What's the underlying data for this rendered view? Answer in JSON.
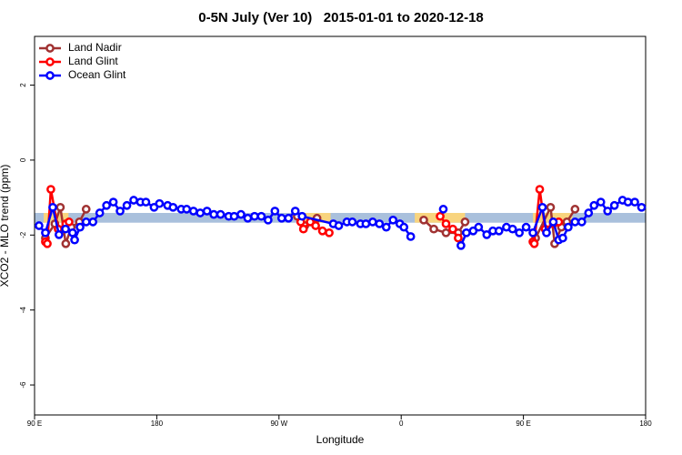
{
  "chart_data": {
    "type": "line",
    "title": "0-5N July (Ver 10)   2015-01-01 to 2020-12-18",
    "xlabel": "Longitude",
    "ylabel": "XCO2 - MLO trend (ppm)",
    "xlim": [
      90,
      540
    ],
    "ylim": [
      -6.8,
      3.3
    ],
    "xticks": [
      {
        "value": 90,
        "label": "90 E"
      },
      180,
      {
        "value": 270,
        "label": "90 W"
      },
      {
        "value": 360,
        "label": "0"
      },
      {
        "value": 450,
        "label": "90 E"
      },
      {
        "value": 540,
        "label": "180"
      }
    ],
    "yticks": [
      -6,
      -4,
      -2,
      0,
      2
    ],
    "legend": "top-left",
    "bands": [
      {
        "xlim": [
          90,
          540
        ],
        "ylim": [
          -1.67,
          -1.41
        ],
        "color": "#a9c0dc"
      },
      {
        "xlim": [
          96.7,
          115
        ],
        "ylim": [
          -1.67,
          -1.41
        ],
        "color": "#f8d47e"
      },
      {
        "xlim": [
          283.5,
          308
        ],
        "ylim": [
          -1.67,
          -1.41
        ],
        "color": "#f8d47e"
      },
      {
        "xlim": [
          370,
          407
        ],
        "ylim": [
          -1.67,
          -1.41
        ],
        "color": "#f8d47e"
      },
      {
        "xlim": [
          457,
          486
        ],
        "ylim": [
          -1.67,
          -1.41
        ],
        "color": "#f8d47e"
      }
    ],
    "series": [
      {
        "name": "Land Nadir",
        "color": "#a03232",
        "x": [
          98,
          105,
          109,
          113,
          117,
          123,
          128,
          null,
          283.5,
          289,
          298,
          null,
          376.6,
          384,
          393,
          402,
          407,
          null,
          459,
          470,
          473,
          478,
          482,
          488
        ],
        "values": [
          -2.08,
          -1.7,
          -1.26,
          -2.23,
          -1.79,
          -1.65,
          -1.31,
          null,
          -1.5,
          -1.75,
          -1.55,
          null,
          -1.6,
          -1.84,
          -1.94,
          -1.94,
          -1.65,
          null,
          -2.08,
          -1.26,
          -2.23,
          -1.79,
          -1.65,
          -1.31
        ]
      },
      {
        "name": "Land Glint",
        "color": "#ff0000",
        "x": [
          98,
          99.4,
          102,
          107.4,
          113,
          115.4,
          null,
          286,
          288,
          293,
          297,
          302,
          307,
          null,
          388.7,
          393,
          398,
          402,
          null,
          457,
          458,
          462,
          466,
          472,
          476
        ],
        "values": [
          -2.18,
          -2.23,
          -0.78,
          -1.84,
          -1.7,
          -1.65,
          null,
          -1.65,
          -1.84,
          -1.65,
          -1.75,
          -1.89,
          -1.94,
          null,
          -1.5,
          -1.7,
          -1.84,
          -2.08,
          null,
          -2.18,
          -2.23,
          -0.78,
          -1.84,
          -1.7,
          -1.65
        ]
      },
      {
        "name": "Ocean Glint",
        "color": "#0000ff",
        "x": [
          93.3,
          98,
          103.4,
          108,
          112.8,
          118,
          119.5,
          123.5,
          128,
          133,
          138,
          143,
          148,
          153,
          158,
          163,
          168,
          172,
          178,
          182,
          188,
          192,
          198,
          202,
          207,
          212,
          217,
          222,
          227,
          233,
          237,
          242,
          247,
          252,
          257,
          262,
          267,
          272,
          277,
          282,
          287,
          310,
          314,
          320,
          324,
          330,
          334,
          339,
          344,
          349,
          354,
          359,
          362,
          367,
          null,
          391,
          null,
          404,
          408,
          413,
          417,
          423,
          427.5,
          432,
          437.5,
          442,
          447,
          452,
          457,
          464,
          467,
          472,
          476,
          479,
          483,
          488,
          493,
          498,
          502,
          507,
          512,
          517,
          523,
          527,
          532,
          537
        ],
        "values": [
          -1.75,
          -1.94,
          -1.26,
          -1.99,
          -1.84,
          -1.94,
          -2.13,
          -1.79,
          -1.65,
          -1.65,
          -1.41,
          -1.21,
          -1.12,
          -1.36,
          -1.21,
          -1.07,
          -1.12,
          -1.12,
          -1.26,
          -1.16,
          -1.21,
          -1.26,
          -1.31,
          -1.31,
          -1.36,
          -1.41,
          -1.36,
          -1.45,
          -1.45,
          -1.5,
          -1.5,
          -1.45,
          -1.55,
          -1.5,
          -1.5,
          -1.6,
          -1.36,
          -1.55,
          -1.55,
          -1.36,
          -1.5,
          -1.7,
          -1.75,
          -1.65,
          -1.65,
          -1.7,
          -1.7,
          -1.65,
          -1.7,
          -1.79,
          -1.6,
          -1.7,
          -1.79,
          -2.04,
          null,
          -1.31,
          null,
          -2.28,
          -1.94,
          -1.89,
          -1.79,
          -1.99,
          -1.89,
          -1.89,
          -1.79,
          -1.84,
          -1.94,
          -1.79,
          -1.94,
          -1.26,
          -1.94,
          -1.65,
          -2.13,
          -2.08,
          -1.79,
          -1.65,
          -1.65,
          -1.41,
          -1.21,
          -1.12,
          -1.36,
          -1.21,
          -1.07,
          -1.12,
          -1.12,
          -1.26
        ]
      }
    ]
  }
}
